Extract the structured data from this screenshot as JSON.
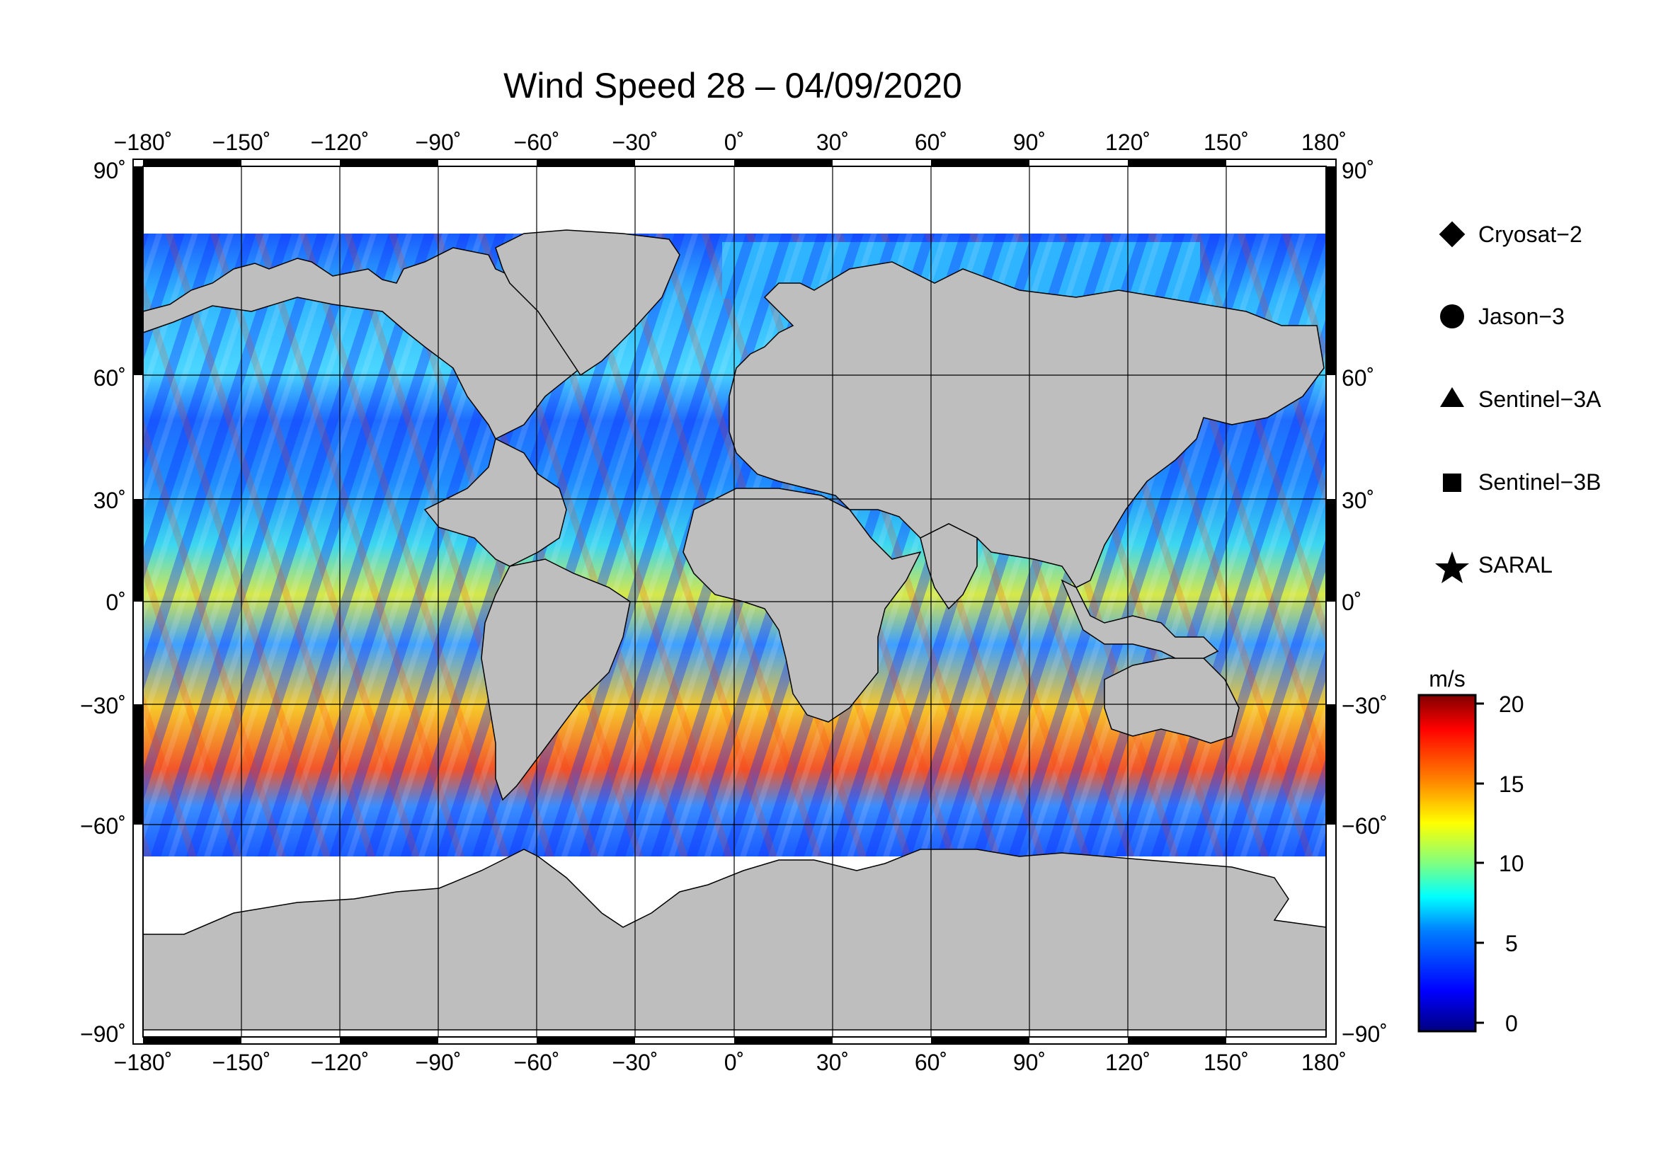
{
  "title": "Wind Speed 28 – 04/09/2020",
  "longitude_ticks": [
    "−180˚",
    "−150˚",
    "−120˚",
    "−90˚",
    "−60˚",
    "−30˚",
    "0˚",
    "30˚",
    "60˚",
    "90˚",
    "120˚",
    "150˚",
    "180˚"
  ],
  "latitude_ticks": [
    "90˚",
    "60˚",
    "30˚",
    "0˚",
    "−30˚",
    "−60˚",
    "−90˚"
  ],
  "legend": [
    {
      "label": "Cryosat−2",
      "marker": "diamond"
    },
    {
      "label": "Jason−3",
      "marker": "circle"
    },
    {
      "label": "Sentinel−3A",
      "marker": "triangle"
    },
    {
      "label": "Sentinel−3B",
      "marker": "square"
    },
    {
      "label": "SARAL",
      "marker": "star"
    }
  ],
  "colorbar": {
    "unit": "m/s",
    "min": 0,
    "max": 20,
    "tick_labels": [
      "20",
      "15",
      "10",
      "5",
      "0"
    ],
    "colors": [
      "#000080",
      "#0000ff",
      "#0080ff",
      "#00ffff",
      "#80ff80",
      "#ffff00",
      "#ff8000",
      "#ff0000",
      "#800000"
    ]
  },
  "colors": {
    "land": "#bebebe",
    "ice": "#ffffff",
    "frame": "#000000"
  }
}
